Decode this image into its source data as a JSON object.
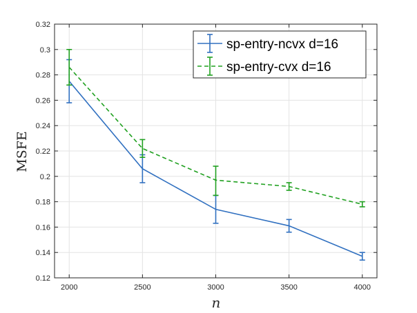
{
  "chart_data": {
    "type": "line",
    "title": "",
    "xlabel": "n",
    "ylabel": "MSFE",
    "x": [
      2000,
      2500,
      3000,
      3500,
      4000
    ],
    "xlim": [
      1900,
      4100
    ],
    "ylim": [
      0.12,
      0.32
    ],
    "xticks": [
      2000,
      2500,
      3000,
      3500,
      4000
    ],
    "xtick_labels": [
      "2000",
      "2500",
      "3000",
      "3500",
      "4000"
    ],
    "yticks": [
      0.12,
      0.14,
      0.16,
      0.18,
      0.2,
      0.22,
      0.24,
      0.26,
      0.28,
      0.3,
      0.32
    ],
    "ytick_labels": [
      "0.12",
      "0.14",
      "0.16",
      "0.18",
      "0.2",
      "0.22",
      "0.24",
      "0.26",
      "0.28",
      "0.3",
      "0.32"
    ],
    "grid": true,
    "legend_position": "top-right",
    "series": [
      {
        "name": "sp-entry-ncvx d=16",
        "color": "#3070c0",
        "line_style": "solid",
        "values": [
          0.275,
          0.206,
          0.174,
          0.161,
          0.137
        ],
        "err_low": [
          0.258,
          0.195,
          0.163,
          0.156,
          0.134
        ],
        "err_high": [
          0.292,
          0.217,
          0.185,
          0.166,
          0.14
        ]
      },
      {
        "name": "sp-entry-cvx d=16",
        "color": "#1fa01f",
        "line_style": "dashed",
        "values": [
          0.286,
          0.222,
          0.197,
          0.192,
          0.178
        ],
        "err_low": [
          0.272,
          0.215,
          0.185,
          0.189,
          0.176
        ],
        "err_high": [
          0.3,
          0.229,
          0.208,
          0.195,
          0.18
        ]
      }
    ]
  }
}
